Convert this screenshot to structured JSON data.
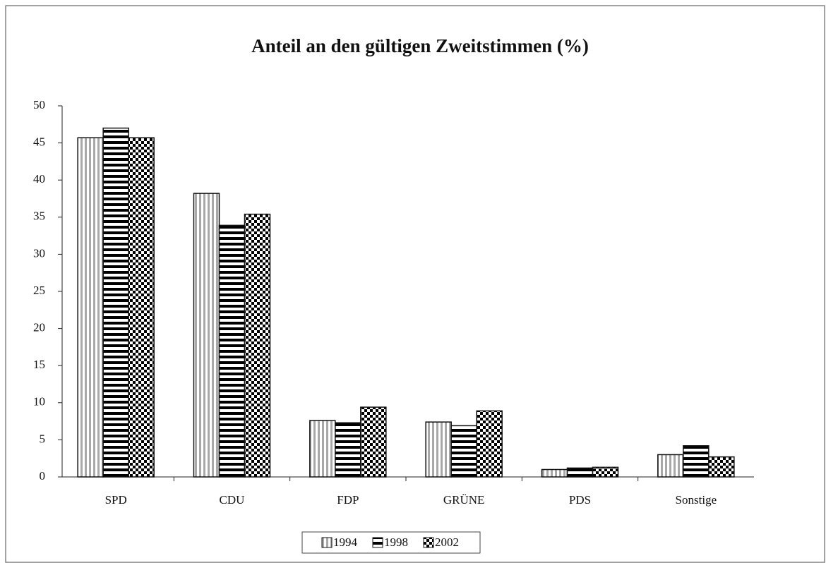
{
  "chart_data": {
    "type": "bar",
    "title": "Anteil an den gültigen Zweitstimmen (%)",
    "categories": [
      "SPD",
      "CDU",
      "FDP",
      "GRÜNE",
      "PDS",
      "Sonstige"
    ],
    "series": [
      {
        "name": "1994",
        "color": "#a8a8a8",
        "values": [
          45.7,
          38.2,
          7.6,
          7.4,
          1.0,
          3.0
        ]
      },
      {
        "name": "1998",
        "color": "#000000",
        "values": [
          47.0,
          33.9,
          7.3,
          6.9,
          1.2,
          4.2
        ]
      },
      {
        "name": "2002",
        "color": "#000000",
        "values": [
          45.7,
          35.4,
          9.4,
          8.9,
          1.3,
          2.7
        ]
      }
    ],
    "ylim": [
      0,
      50
    ],
    "yticks": [
      0,
      5,
      10,
      15,
      20,
      25,
      30,
      35,
      40,
      45,
      50
    ],
    "grid": false,
    "legend": "bottom"
  }
}
